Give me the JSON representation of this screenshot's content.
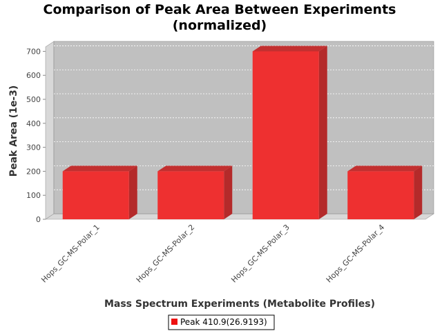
{
  "chart_data": {
    "type": "bar",
    "title_line1": "Comparison of Peak Area Between Experiments",
    "title_line2": "(normalized)",
    "xlabel": "Mass Spectrum Experiments (Metabolite Profiles)",
    "ylabel": "Peak Area (1e-3)",
    "categories": [
      "Hops_GC-MS-Polar_1",
      "Hops_GC-MS-Polar_2",
      "Hops_GC-MS-Polar_3",
      "Hops_GC-MS-Polar_4"
    ],
    "series": [
      {
        "name": "Peak 410.9(26.9193)",
        "values": [
          200,
          200,
          700,
          200
        ]
      }
    ],
    "ylim": [
      0,
      730
    ],
    "yticks": [
      "0",
      "100",
      "200",
      "300",
      "400",
      "500",
      "600",
      "700"
    ],
    "grid": true,
    "legend_position": "bottom",
    "colors": {
      "bar_front": "#ee3030",
      "bar_side": "#b42a2a",
      "bar_top": "#c23030",
      "plot_bg": "#c0c0c0"
    }
  }
}
